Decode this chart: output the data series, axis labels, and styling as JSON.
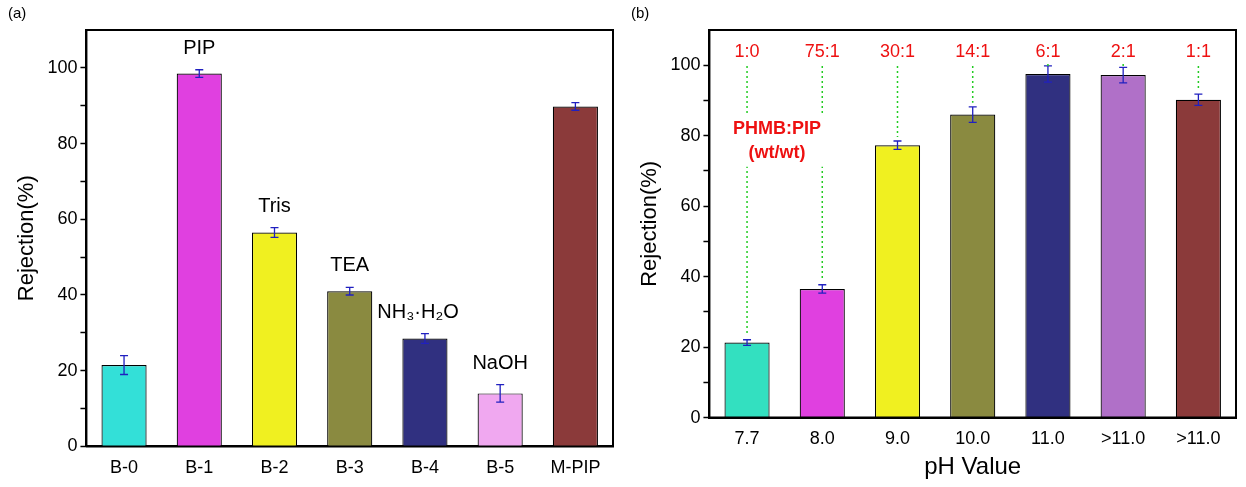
{
  "chart_data": [
    {
      "type": "bar",
      "ylabel": "Rejection(%)",
      "categories": [
        "B-0",
        "B-1",
        "B-2",
        "B-3",
        "B-4",
        "B-5",
        "M-PIP"
      ],
      "values": [
        21.5,
        98.5,
        56.5,
        41,
        28.5,
        14,
        89.8
      ],
      "errors": [
        2.5,
        1,
        1.3,
        1,
        1.3,
        2.3,
        1
      ],
      "colors": [
        "#33e0d8",
        "#e040e0",
        "#f0f020",
        "#8a8a40",
        "#303080",
        "#f0a8f0",
        "#8b3a3a"
      ],
      "ylim": [
        0,
        110
      ],
      "yticks": [
        0,
        {
          "value": 10,
          "label": null
        },
        20,
        {
          "value": 30,
          "label": null
        },
        40,
        {
          "value": 50,
          "label": null
        },
        60,
        {
          "value": 70,
          "label": null
        },
        80,
        {
          "value": 90,
          "label": null
        },
        100
      ],
      "grid": false,
      "legend": false,
      "annotations": [
        "(a)",
        "PIP",
        "Tris",
        "TEA",
        "NH₃·H₂O",
        "NaOH"
      ]
    },
    {
      "type": "bar",
      "ylabel": "Rejection(%)",
      "xlabel": "pH Value",
      "categories": [
        "7.7",
        "8.0",
        "9.0",
        "10.0",
        "11.0",
        ">11.0",
        ">11.0"
      ],
      "values": [
        21.3,
        36.5,
        77.3,
        86,
        97.5,
        97.2,
        90.2
      ],
      "errors": [
        0.8,
        1.2,
        1.2,
        2.2,
        2.3,
        2.2,
        1.6
      ],
      "colors": [
        "#33e0c0",
        "#e040e0",
        "#f0f020",
        "#8a8a40",
        "#303080",
        "#b070c8",
        "#8b3a3a"
      ],
      "ylim": [
        0,
        110
      ],
      "yticks": [
        0,
        {
          "value": 10,
          "label": null
        },
        20,
        {
          "value": 30,
          "label": null
        },
        40,
        {
          "value": 50,
          "label": null
        },
        60,
        {
          "value": 70,
          "label": null
        },
        80,
        {
          "value": 90,
          "label": null
        },
        100
      ],
      "grid": false,
      "legend": false,
      "annotations": [
        "(b)",
        {
          "text": "1:0",
          "x": "7.7",
          "y": 21.3
        },
        {
          "text": "75:1",
          "x": "8.0",
          "y": 36.5
        },
        {
          "text": "30:1",
          "x": "9.0",
          "y": 77.3
        },
        {
          "text": "14:1",
          "x": "10.0",
          "y": 86
        },
        {
          "text": "6:1",
          "x": "11.0",
          "y": 97.5
        },
        {
          "text": "2:1",
          "x": ">11.0",
          "y": 97.2
        },
        {
          "text": "1:1",
          "y": 90.2
        },
        "PHMB:PIP (wt/wt)"
      ]
    }
  ]
}
